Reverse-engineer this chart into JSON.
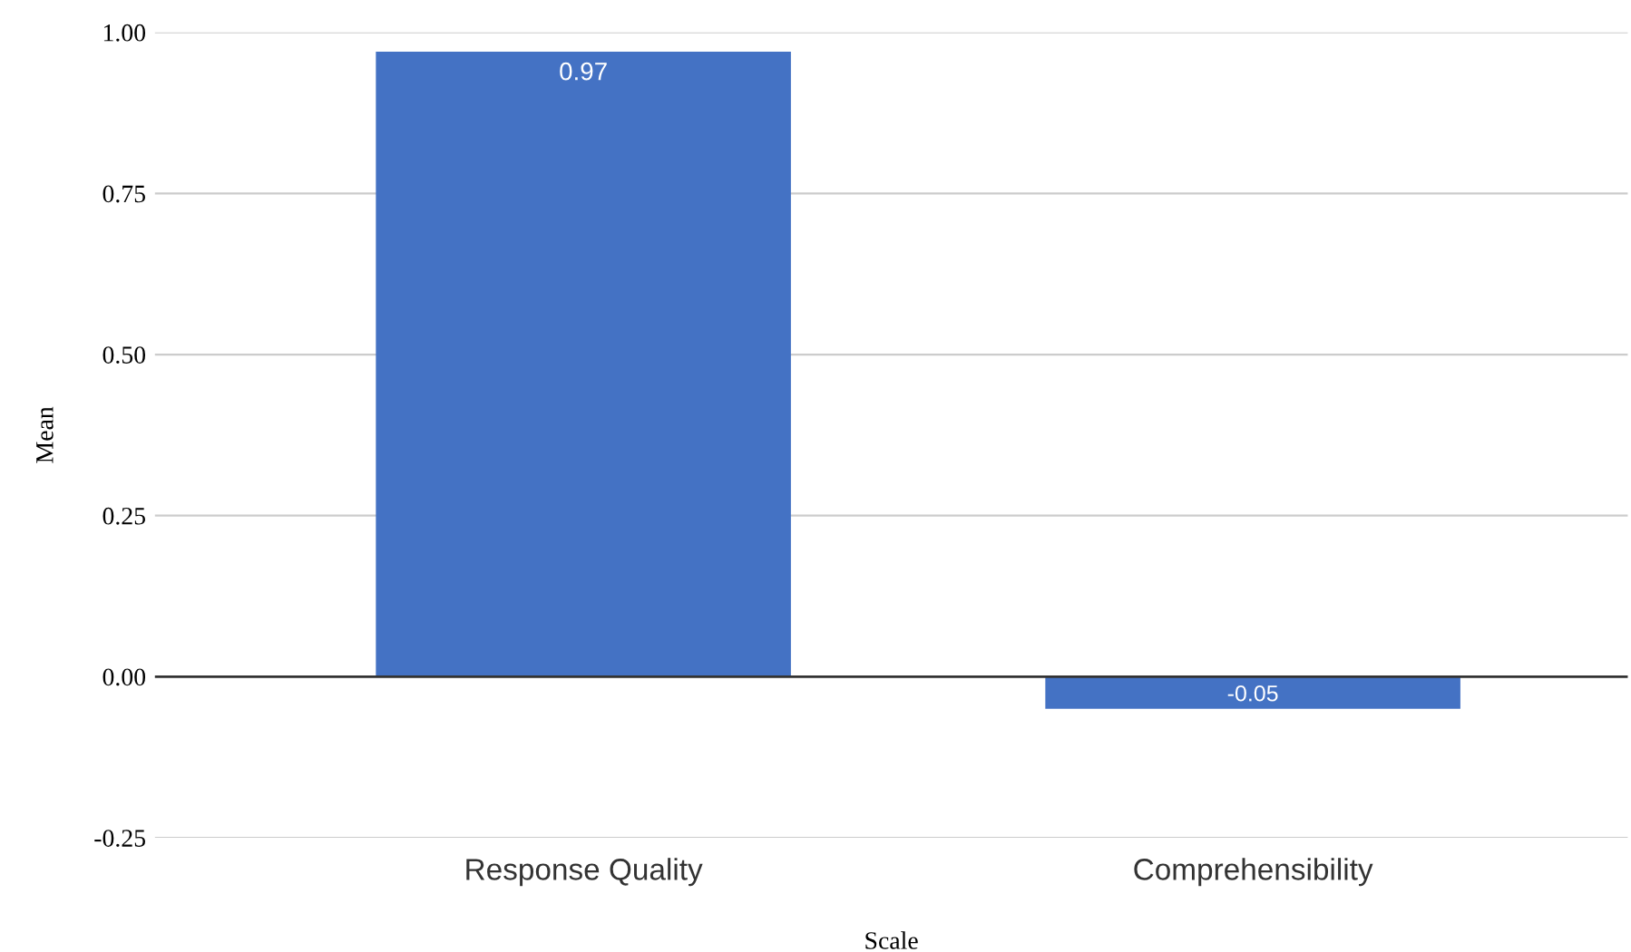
{
  "chart_data": {
    "type": "bar",
    "xlabel": "Scale",
    "ylabel": "Mean",
    "categories": [
      "Response Quality",
      "Comprehensibility"
    ],
    "values": [
      0.97,
      -0.05
    ],
    "color": "#4472c4",
    "ylim": [
      -0.25,
      1.0
    ],
    "yticks": [
      {
        "value": -0.25,
        "label": "-0.25"
      },
      {
        "value": 0,
        "label": "0.00"
      },
      {
        "value": 0.25,
        "label": "0.25"
      },
      {
        "value": 0.5,
        "label": "0.50"
      },
      {
        "value": 0.75,
        "label": "0.75"
      },
      {
        "value": 1.0,
        "label": "1.00"
      }
    ],
    "grid": "y",
    "data_labels": true
  }
}
